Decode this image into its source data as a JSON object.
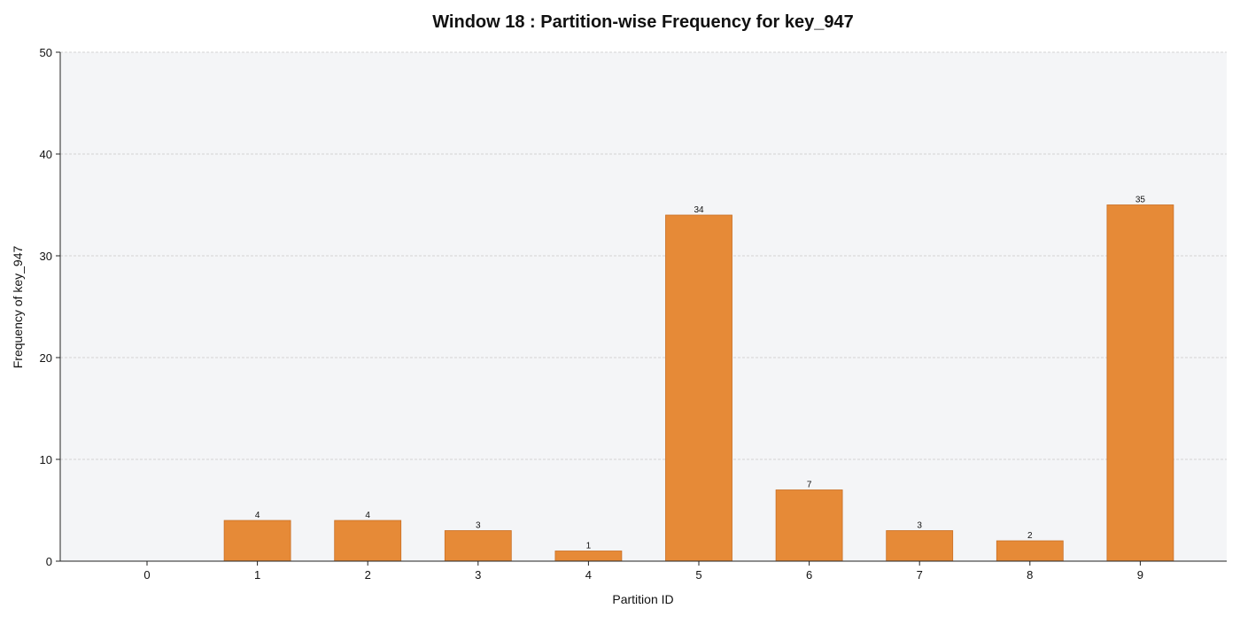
{
  "chart_data": {
    "type": "bar",
    "title": "Window 18 : Partition-wise Frequency for key_947",
    "xlabel": "Partition ID",
    "ylabel": "Frequency of key_947",
    "categories": [
      "0",
      "1",
      "2",
      "3",
      "4",
      "5",
      "6",
      "7",
      "8",
      "9"
    ],
    "values": [
      0,
      4,
      4,
      3,
      1,
      34,
      7,
      3,
      2,
      35
    ],
    "data_labels": [
      "",
      "4",
      "4",
      "3",
      "1",
      "34",
      "7",
      "3",
      "2",
      "35"
    ],
    "ylim": [
      0,
      50
    ],
    "yticks": [
      0,
      10,
      20,
      30,
      40,
      50
    ],
    "ytick_labels": [
      "0",
      "10",
      "20",
      "30",
      "40",
      "50"
    ],
    "grid": "horizontal-dashed",
    "legend": "none",
    "colors": {
      "bar_fill": "#e68a37",
      "bar_edge": "#c96f24",
      "plot_background": "#f4f5f7",
      "grid": "#c8c8c8",
      "axis": "#222222"
    }
  }
}
